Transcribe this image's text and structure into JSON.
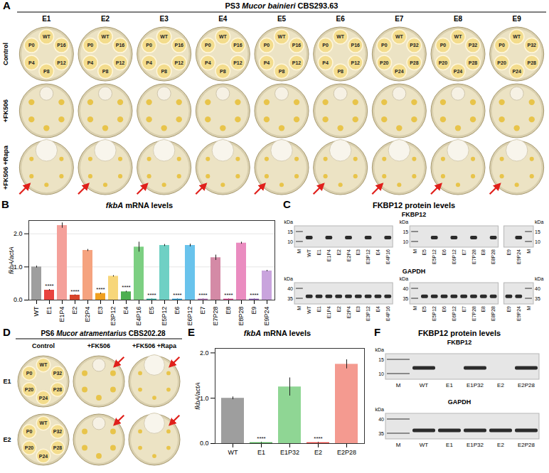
{
  "panels": {
    "A": {
      "letter": "A",
      "title": {
        "prefix": "PS3",
        "species": "Mucor bainieri",
        "strain": "CBS293.63"
      },
      "columns": [
        "E1",
        "E2",
        "E3",
        "E4",
        "E5",
        "E6",
        "E7",
        "E8",
        "E9"
      ],
      "rows": [
        "Control",
        "+FK506",
        "+FK506 +Rapa"
      ],
      "plate_labels": [
        [
          "WT",
          "P0",
          "P16",
          "P4",
          "P12",
          "P8"
        ],
        [
          "WT",
          "P0",
          "P16",
          "P4",
          "P12",
          "P8"
        ],
        [
          "WT",
          "P0",
          "P16",
          "P4",
          "P12",
          "P8"
        ],
        [
          "WT",
          "P0",
          "P16",
          "P4",
          "P12",
          "P8"
        ],
        [
          "WT",
          "P0",
          "P16",
          "P4",
          "P12",
          "P8"
        ],
        [
          "WT",
          "P0",
          "P16",
          "P4",
          "P12",
          "P8"
        ],
        [
          "WT",
          "P0",
          "P32",
          "P20",
          "P28",
          "P24"
        ],
        [
          "WT",
          "P0",
          "P32",
          "P20",
          "P28",
          "P24"
        ],
        [
          "WT",
          "P0",
          "P32",
          "P20",
          "P28",
          "P24"
        ]
      ]
    },
    "C": {
      "letter": "C",
      "title": "FKBP12 protein levels",
      "unit": "kDa",
      "blots": [
        {
          "name": "FKBP12",
          "band_kda": 12,
          "marker_kda": [
            15,
            10
          ],
          "groups": [
            {
              "lanes": [
                "M",
                "WT",
                "E1",
                "E1P4",
                "E2",
                "E2P4",
                "E3",
                "E3P12",
                "E4",
                "E4P16"
              ],
              "bands": [
                false,
                true,
                false,
                true,
                false,
                true,
                false,
                true,
                false,
                true
              ],
              "marker_lane": 0
            },
            {
              "lanes": [
                "M",
                "E5",
                "E5P12",
                "E6",
                "E6P12",
                "E7",
                "E7P28",
                "E8",
                "E8P28"
              ],
              "bands": [
                false,
                false,
                true,
                false,
                true,
                false,
                true,
                false,
                true
              ],
              "marker_lane": 0
            },
            {
              "lanes": [
                "E9",
                "E9P24",
                "M"
              ],
              "bands": [
                false,
                true,
                false
              ],
              "marker_lane": 2
            }
          ]
        },
        {
          "name": "GAPDH",
          "band_kda": 36,
          "marker_kda": [
            40,
            35
          ],
          "groups": [
            {
              "lanes": [
                "M",
                "WT",
                "E1",
                "E1P4",
                "E2",
                "E2P4",
                "E3",
                "E3P12",
                "E4",
                "E4P16"
              ],
              "bands": [
                false,
                true,
                true,
                true,
                true,
                true,
                true,
                true,
                true,
                true
              ],
              "marker_lane": 0
            },
            {
              "lanes": [
                "M",
                "E5",
                "E5P12",
                "E6",
                "E6P12",
                "E7",
                "E7P28",
                "E8",
                "E8P28"
              ],
              "bands": [
                false,
                true,
                true,
                true,
                true,
                true,
                true,
                true,
                true
              ],
              "marker_lane": 0
            },
            {
              "lanes": [
                "E9",
                "E9P24",
                "M"
              ],
              "bands": [
                true,
                true,
                false
              ],
              "marker_lane": 2
            }
          ]
        }
      ]
    },
    "D": {
      "letter": "D",
      "title": {
        "prefix": "PS6",
        "species": "Mucor atramentarius",
        "strain": "CBS202.28"
      },
      "rows": [
        "E1",
        "E2"
      ],
      "columns": [
        "Control",
        "+FK506",
        "+FK506 +Rapa"
      ],
      "plate_labels": [
        [
          "WT",
          "P0",
          "P32",
          "P20",
          "P28",
          "P24"
        ],
        [
          "WT",
          "P0",
          "P32",
          "P20",
          "P28",
          "P24"
        ]
      ]
    },
    "F": {
      "letter": "F",
      "title": "FKBP12 protein levels",
      "unit": "kDa",
      "blots": [
        {
          "name": "FKBP12",
          "band_kda": 12,
          "marker_kda": [
            15,
            10
          ],
          "groups": [
            {
              "lanes": [
                "M",
                "WT",
                "E1",
                "E1P32",
                "E2",
                "E2P28"
              ],
              "bands": [
                false,
                true,
                false,
                true,
                false,
                true
              ],
              "marker_lane": 0
            }
          ]
        },
        {
          "name": "GAPDH",
          "band_kda": 36,
          "marker_kda": [
            40,
            35
          ],
          "groups": [
            {
              "lanes": [
                "M",
                "WT",
                "E1",
                "E1P32",
                "E2",
                "E2P28"
              ],
              "bands": [
                false,
                true,
                true,
                true,
                true,
                true
              ],
              "marker_lane": 0
            }
          ]
        }
      ]
    }
  },
  "chart_data": [
    {
      "panel": "B",
      "type": "bar",
      "title": "fkbA mRNA levels",
      "y_label": "fkbA/actA",
      "categories": [
        "WT",
        "E1",
        "E1P4",
        "E2",
        "E2P4",
        "E3",
        "E3P12",
        "E4",
        "E4P16",
        "E5",
        "E5P12",
        "E6",
        "E6P12",
        "E7",
        "E7P28",
        "E8",
        "E8P28",
        "E9",
        "E9P24"
      ],
      "values": [
        1.0,
        0.3,
        2.25,
        0.15,
        1.5,
        0.2,
        0.72,
        0.25,
        1.6,
        0.03,
        1.65,
        0.03,
        1.65,
        0.03,
        1.28,
        0.03,
        1.72,
        0.03,
        0.88
      ],
      "errors": [
        0.03,
        0.02,
        0.08,
        0.01,
        0.03,
        0.02,
        0.02,
        0.02,
        0.15,
        0.005,
        0.03,
        0.005,
        0.04,
        0.005,
        0.08,
        0.005,
        0.03,
        0.005,
        0.02
      ],
      "colors": [
        "#9e9e9e",
        "#e8433f",
        "#f4a09a",
        "#d9452b",
        "#f5a37f",
        "#f0a020",
        "#f7d67a",
        "#4caf50",
        "#7ccf82",
        "#26a69a",
        "#6fd0c4",
        "#2a9fd6",
        "#69c3ec",
        "#b06ab3",
        "#d48aa6",
        "#d6458f",
        "#ea8cc0",
        "#8e5bb6",
        "#c9a4dd"
      ],
      "ylim": [
        0,
        2.4
      ],
      "yticks": [
        0,
        1,
        2
      ],
      "grid": true,
      "annotations": [
        {
          "category": "E1",
          "text": "****"
        },
        {
          "category": "E2",
          "text": "****"
        },
        {
          "category": "E3",
          "text": "****"
        },
        {
          "category": "E4",
          "text": "****"
        },
        {
          "category": "E5",
          "text": "****"
        },
        {
          "category": "E6",
          "text": "****"
        },
        {
          "category": "E7",
          "text": "****"
        },
        {
          "category": "E8",
          "text": "****"
        },
        {
          "category": "E9",
          "text": "****"
        }
      ]
    },
    {
      "panel": "E",
      "type": "bar",
      "title": "fkbA mRNA levels",
      "y_label": "fkbA/actA",
      "categories": [
        "WT",
        "E1",
        "E1P32",
        "E2",
        "E2P28"
      ],
      "values": [
        1.0,
        0.02,
        1.25,
        0.02,
        1.75
      ],
      "errors": [
        0.03,
        0.01,
        0.2,
        0.01,
        0.1
      ],
      "colors": [
        "#9e9e9e",
        "#4caf50",
        "#8fd694",
        "#e8433f",
        "#f49a90"
      ],
      "ylim": [
        0,
        2.1
      ],
      "yticks": [
        0,
        1,
        2
      ],
      "grid": false,
      "annotations": [
        {
          "category": "E1",
          "text": "****"
        },
        {
          "category": "E2",
          "text": "****"
        }
      ]
    }
  ]
}
